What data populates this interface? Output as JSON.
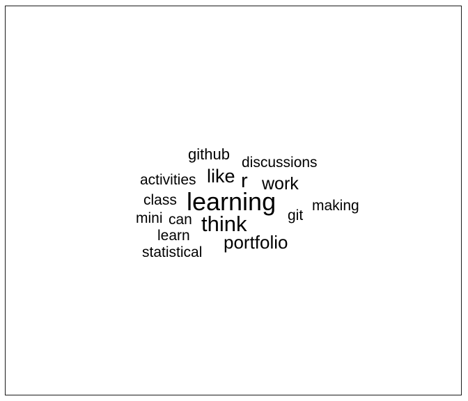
{
  "wordcloud": {
    "words": {
      "github": "github",
      "discussions": "discussions",
      "like": "like",
      "activities": "activities",
      "r": "r",
      "work": "work",
      "class": "class",
      "learning": "learning",
      "making": "making",
      "git": "git",
      "mini": "mini",
      "can": "can",
      "think": "think",
      "learn": "learn",
      "portfolio": "portfolio",
      "statistical": "statistical"
    },
    "text_color": "#000000",
    "border_color": "#1a1a1a",
    "background_color": "#ffffff"
  }
}
